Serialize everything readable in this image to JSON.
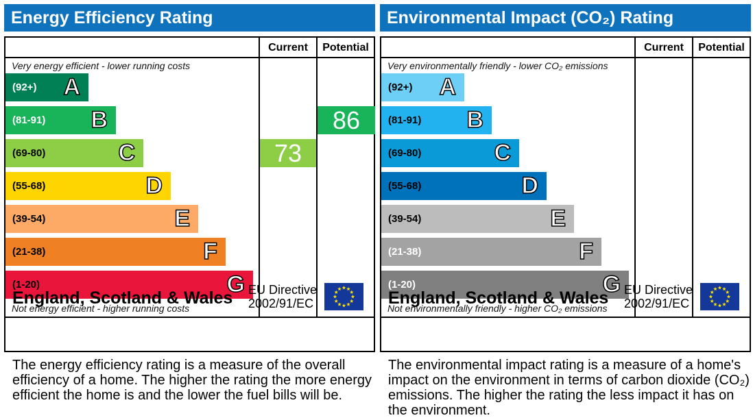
{
  "panels": [
    {
      "title": "Energy Efficiency Rating",
      "current_label": "Current",
      "potential_label": "Potential",
      "top_note": "Very energy efficient - lower running costs",
      "bottom_note": "Not energy efficient - higher running costs",
      "country": "England, Scotland & Wales",
      "eu_line1": "EU Directive",
      "eu_line2": "2002/91/EC",
      "description": "The energy efficiency rating is a measure of the overall efficiency of a home. The higher the rating the more energy efficient the home is and the lower the fuel bills will be.",
      "current": "73",
      "current_band": 2,
      "potential": "86",
      "potential_band": 1,
      "bands": [
        {
          "range": "(92+)",
          "letter": "A",
          "color": "#008054",
          "text_color": "#ffffff"
        },
        {
          "range": "(81-91)",
          "letter": "B",
          "color": "#19b459",
          "text_color": "#ffffff"
        },
        {
          "range": "(69-80)",
          "letter": "C",
          "color": "#8dce46",
          "text_color": "#000000"
        },
        {
          "range": "(55-68)",
          "letter": "D",
          "color": "#ffd500",
          "text_color": "#000000"
        },
        {
          "range": "(39-54)",
          "letter": "E",
          "color": "#fcaa65",
          "text_color": "#000000"
        },
        {
          "range": "(21-38)",
          "letter": "F",
          "color": "#ef8023",
          "text_color": "#000000"
        },
        {
          "range": "(1-20)",
          "letter": "G",
          "color": "#e9153b",
          "text_color": "#000000"
        }
      ]
    },
    {
      "title": "Environmental Impact (CO₂) Rating",
      "current_label": "Current",
      "potential_label": "Potential",
      "top_note": "Very environmentally friendly - lower CO₂ emissions",
      "bottom_note": "Not environmentally friendly - higher CO₂ emissions",
      "country": "England, Scotland & Wales",
      "eu_line1": "EU Directive",
      "eu_line2": "2002/91/EC",
      "description": "The environmental impact rating is a measure of a home's impact on the environment in terms of carbon dioxide (CO₂) emissions. The higher the rating the less impact it has on the environment.",
      "current": null,
      "potential": null,
      "bands": [
        {
          "range": "(92+)",
          "letter": "A",
          "color": "#6dcff6",
          "text_color": "#000000"
        },
        {
          "range": "(81-91)",
          "letter": "B",
          "color": "#21b2ef",
          "text_color": "#000000"
        },
        {
          "range": "(69-80)",
          "letter": "C",
          "color": "#0a9ad8",
          "text_color": "#000000"
        },
        {
          "range": "(55-68)",
          "letter": "D",
          "color": "#0072bc",
          "text_color": "#000000"
        },
        {
          "range": "(39-54)",
          "letter": "E",
          "color": "#bcbcbc",
          "text_color": "#000000"
        },
        {
          "range": "(21-38)",
          "letter": "F",
          "color": "#a3a3a3",
          "text_color": "#ffffff"
        },
        {
          "range": "(1-20)",
          "letter": "G",
          "color": "#808080",
          "text_color": "#ffffff"
        }
      ]
    }
  ],
  "chart_data": {
    "type": "table",
    "title": "Energy Efficiency Rating",
    "current": 73,
    "potential": 86,
    "env_current": null,
    "env_potential": null
  }
}
